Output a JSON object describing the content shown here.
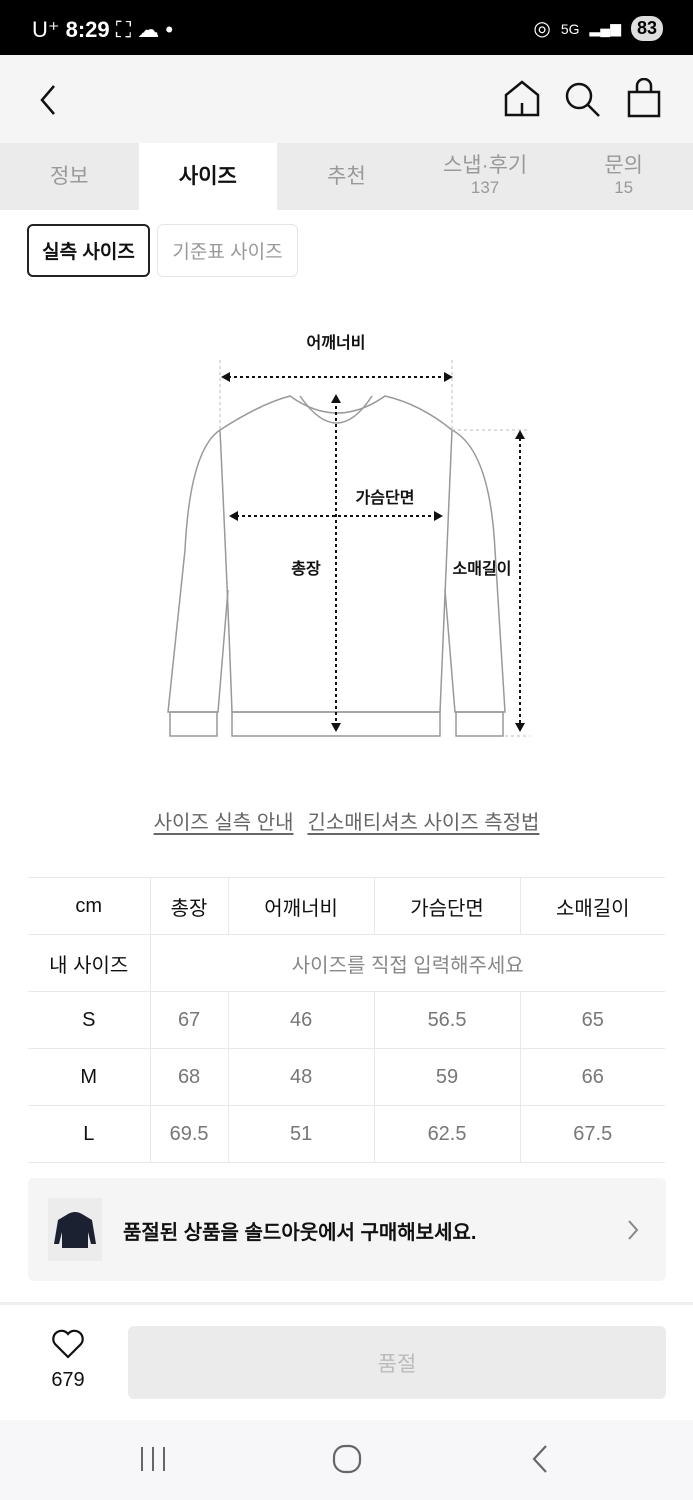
{
  "status_bar": {
    "carrier": "U⁺",
    "time": "8:29",
    "network": "5G",
    "battery": "83"
  },
  "header": {
    "icons": [
      "back-icon",
      "home-icon",
      "search-icon",
      "shopping-bag-icon"
    ]
  },
  "tabs": [
    {
      "label": "정보"
    },
    {
      "label": "사이즈",
      "active": true
    },
    {
      "label": "추천"
    },
    {
      "label": "스냅·후기",
      "count": "137"
    },
    {
      "label": "문의",
      "count": "15"
    }
  ],
  "size_toggle": {
    "actual": "실측 사이즈",
    "standard": "기준표 사이즈",
    "selected": "실측 사이즈"
  },
  "diagram": {
    "shoulder": "어깨너비",
    "chest": "가슴단면",
    "length": "총장",
    "sleeve": "소매길이"
  },
  "links": {
    "guide": "사이즈 실측 안내",
    "method": "긴소매티셔츠 사이즈 측정법"
  },
  "size_table": {
    "headers": [
      "cm",
      "총장",
      "어깨너비",
      "가슴단면",
      "소매길이"
    ],
    "my_size": {
      "label": "내 사이즈",
      "placeholder": "사이즈를 직접 입력해주세요"
    },
    "rows": [
      [
        "S",
        "67",
        "46",
        "56.5",
        "65"
      ],
      [
        "M",
        "68",
        "48",
        "59",
        "66"
      ],
      [
        "L",
        "69.5",
        "51",
        "62.5",
        "67.5"
      ]
    ]
  },
  "banner": {
    "text": "품절된 상품을 솔드아웃에서 구매해보세요."
  },
  "bottom_bar": {
    "likes": "679",
    "buy_label": "품절"
  }
}
